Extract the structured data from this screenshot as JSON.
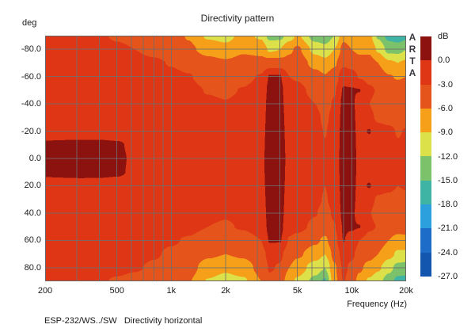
{
  "title": "Directivity pattern",
  "y_axis": {
    "unit_label": "deg",
    "ticks": [
      {
        "label": "-80.0",
        "deg": -80
      },
      {
        "label": "-60.0",
        "deg": -60
      },
      {
        "label": "-40.0",
        "deg": -40
      },
      {
        "label": "-20.0",
        "deg": -20
      },
      {
        "label": "0.0",
        "deg": 0
      },
      {
        "label": "20.0",
        "deg": 20
      },
      {
        "label": "40.0",
        "deg": 40
      },
      {
        "label": "60.0",
        "deg": 60
      },
      {
        "label": "80.0",
        "deg": 80
      }
    ]
  },
  "x_axis": {
    "label": "Frequency (Hz)",
    "ticks": [
      {
        "label": "200",
        "hz": 200
      },
      {
        "label": "500",
        "hz": 500
      },
      {
        "label": "1k",
        "hz": 1000
      },
      {
        "label": "2k",
        "hz": 2000
      },
      {
        "label": "5k",
        "hz": 5000
      },
      {
        "label": "10k",
        "hz": 10000
      },
      {
        "label": "20k",
        "hz": 20000
      }
    ]
  },
  "watermark": {
    "letters": [
      "A",
      "R",
      "T",
      "A"
    ]
  },
  "colorbar": {
    "unit_label": "dB",
    "tick_labels": [
      "0.0",
      "-3.0",
      "-6.0",
      "-9.0",
      "-12.0",
      "-15.0",
      "-18.0",
      "-21.0",
      "-24.0",
      "-27.0"
    ],
    "colors": [
      "#8C1210",
      "#DF3715",
      "#E5541B",
      "#F5A018",
      "#DCE14A",
      "#7CC26B",
      "#3FB3A4",
      "#2BA0DC",
      "#1C6CC8",
      "#1356B0"
    ]
  },
  "footer": {
    "text": "ESP-232/WS../SW   Directivity horizontal"
  },
  "chart_data": {
    "type": "heatmap",
    "title": "Directivity pattern",
    "xlabel": "Frequency (Hz)",
    "ylabel": "deg",
    "x_scale": "log",
    "xlim_hz": [
      200,
      20000
    ],
    "ylim_deg": [
      -90,
      90
    ],
    "legend_title": "dB",
    "levels_db": [
      0,
      -3,
      -6,
      -9,
      -12,
      -15,
      -18,
      -21,
      -24,
      -27
    ],
    "band_colors": [
      "#8C1210",
      "#DF3715",
      "#E5541B",
      "#F5A018",
      "#DCE14A",
      "#7CC26B",
      "#3FB3A4",
      "#2BA0DC",
      "#1C6CC8",
      "#1356B0"
    ],
    "freq_hz": [
      200,
      250,
      315,
      400,
      500,
      630,
      800,
      1000,
      1250,
      1600,
      2000,
      2500,
      3150,
      3500,
      4000,
      4500,
      5000,
      6300,
      7100,
      8000,
      9000,
      10000,
      11000,
      12500,
      14000,
      16000,
      18000,
      20000
    ],
    "angle_deg": [
      -90,
      -80,
      -70,
      -60,
      -50,
      -40,
      -30,
      -20,
      -10,
      0,
      10,
      20,
      30,
      40,
      50,
      60,
      70,
      80,
      90
    ],
    "values_db": [
      [
        -2.0,
        -2.0,
        -2.1,
        -2.8,
        -3.2,
        -3.6,
        -4.0,
        -4.8,
        -6.2,
        -9.5,
        -10.0,
        -8.0,
        -9.5,
        -13.0,
        -13.0,
        -10.5,
        -8.5,
        -13.5,
        -14.0,
        -12.0,
        -6.8,
        -8.0,
        -7.5,
        -8.0,
        -12.5,
        -16.0,
        -17.0,
        -16.0
      ],
      [
        -2.0,
        -2.0,
        -2.0,
        -2.4,
        -2.7,
        -3.0,
        -3.5,
        -4.2,
        -5.5,
        -7.0,
        -8.0,
        -6.5,
        -7.0,
        -9.5,
        -9.0,
        -6.5,
        -5.5,
        -10.0,
        -11.0,
        -9.0,
        -5.0,
        -6.0,
        -6.5,
        -6.5,
        -9.5,
        -13.0,
        -13.0,
        -12.0
      ],
      [
        -2.0,
        -2.0,
        -2.0,
        -2.1,
        -2.2,
        -2.4,
        -2.7,
        -3.1,
        -3.6,
        -5.0,
        -5.5,
        -4.8,
        -5.0,
        -4.5,
        -4.5,
        -5.0,
        -4.4,
        -7.0,
        -8.0,
        -6.5,
        -3.5,
        -4.2,
        -5.0,
        -5.0,
        -6.0,
        -8.5,
        -9.0,
        -8.5
      ],
      [
        -2.0,
        -2.0,
        -1.9,
        -1.9,
        -2.0,
        -2.1,
        -2.3,
        -2.6,
        -2.9,
        -3.8,
        -4.0,
        -3.6,
        -2.8,
        0.2,
        0.2,
        -3.0,
        -3.2,
        -4.8,
        -5.8,
        -4.5,
        -1.2,
        -1.6,
        -3.2,
        -3.8,
        -4.2,
        -5.8,
        -6.2,
        -6.0
      ],
      [
        -2.0,
        -2.0,
        -1.9,
        -1.8,
        -1.9,
        -2.0,
        -2.1,
        -2.3,
        -2.5,
        -3.1,
        -3.3,
        -2.9,
        -2.1,
        0.8,
        0.8,
        -2.3,
        -2.5,
        -3.6,
        -4.6,
        -3.3,
        0.3,
        0.2,
        0.1,
        -2.6,
        -3.2,
        -4.4,
        -4.8,
        -4.5
      ],
      [
        -2.0,
        -2.0,
        -1.9,
        -1.8,
        -1.8,
        -1.9,
        -2.0,
        -2.1,
        -2.3,
        -2.7,
        -2.9,
        -2.5,
        -1.7,
        1.0,
        1.0,
        -1.9,
        -2.1,
        -3.0,
        -4.0,
        -2.7,
        0.8,
        0.8,
        -1.6,
        -3.0,
        -3.8,
        -4.2,
        -4.5,
        -4.2
      ],
      [
        -2.0,
        -1.9,
        -1.8,
        -1.7,
        -1.7,
        -1.8,
        -1.8,
        -1.9,
        -2.1,
        -2.3,
        -2.5,
        -2.1,
        -1.4,
        1.2,
        1.2,
        -1.6,
        -1.8,
        -2.5,
        -3.4,
        -2.3,
        1.0,
        1.0,
        -1.3,
        -2.5,
        -3.4,
        -3.6,
        -3.8,
        -3.6
      ],
      [
        -1.8,
        -1.8,
        -1.7,
        -1.6,
        -1.6,
        -1.6,
        -1.7,
        -1.8,
        -1.9,
        -2.1,
        -2.2,
        -1.9,
        -1.1,
        1.3,
        1.3,
        -1.3,
        -1.6,
        -2.3,
        -3.1,
        -2.1,
        1.2,
        1.2,
        -1.1,
        0.2,
        -2.2,
        -2.6,
        -3.1,
        -2.9
      ],
      [
        0.5,
        0.7,
        0.8,
        0.7,
        0.4,
        -0.7,
        -1.3,
        -1.5,
        -1.6,
        -1.9,
        -2.0,
        -1.7,
        -0.9,
        1.4,
        1.4,
        -1.1,
        -1.5,
        -2.1,
        -2.9,
        -1.9,
        1.3,
        1.3,
        -0.9,
        -1.5,
        -2.0,
        -2.3,
        -2.9,
        -2.7
      ],
      [
        0.8,
        1.0,
        1.1,
        1.0,
        0.6,
        -0.5,
        -1.0,
        -1.2,
        -1.4,
        -1.6,
        -1.8,
        -1.5,
        -0.7,
        1.5,
        1.5,
        -0.9,
        -1.3,
        -2.0,
        -2.7,
        -1.7,
        1.4,
        1.4,
        -0.7,
        -1.2,
        -1.8,
        -2.1,
        -2.7,
        -2.5
      ],
      [
        0.6,
        0.8,
        0.9,
        0.8,
        0.5,
        -0.6,
        -1.2,
        -1.4,
        -1.5,
        -1.8,
        -1.9,
        -1.6,
        -0.8,
        1.4,
        1.4,
        -1.0,
        -1.4,
        -2.1,
        -2.8,
        -1.8,
        1.3,
        1.3,
        -0.8,
        -1.4,
        -1.9,
        -2.2,
        -2.8,
        -2.6
      ],
      [
        -1.4,
        -1.4,
        -1.3,
        -1.3,
        -1.4,
        -1.5,
        -1.6,
        -1.7,
        -1.8,
        -2.0,
        -2.1,
        -1.8,
        -1.0,
        1.3,
        1.3,
        -1.2,
        -1.5,
        -2.2,
        -3.0,
        -2.0,
        1.2,
        1.2,
        -1.0,
        0.2,
        -2.1,
        -2.5,
        -3.0,
        -2.8
      ],
      [
        -1.8,
        -1.8,
        -1.7,
        -1.6,
        -1.6,
        -1.7,
        -1.8,
        -1.9,
        -2.0,
        -2.2,
        -2.4,
        -2.0,
        -1.3,
        1.2,
        1.2,
        -1.5,
        -1.7,
        -2.4,
        -3.2,
        -2.2,
        1.0,
        1.0,
        -1.2,
        -2.4,
        -3.3,
        -3.5,
        -3.7,
        -3.5
      ],
      [
        -2.0,
        -2.0,
        -1.9,
        -1.7,
        -1.7,
        -1.8,
        -1.9,
        -2.0,
        -2.2,
        -2.6,
        -2.8,
        -2.4,
        -1.6,
        1.0,
        1.0,
        -1.8,
        -2.0,
        -2.9,
        -3.9,
        -2.6,
        0.8,
        0.8,
        -1.5,
        -2.9,
        -3.7,
        -4.1,
        -4.4,
        -4.1
      ],
      [
        -2.0,
        -2.0,
        -1.9,
        -1.8,
        -1.8,
        -1.9,
        -2.0,
        -2.2,
        -2.4,
        -3.0,
        -3.2,
        -2.8,
        -2.0,
        0.8,
        0.8,
        -2.2,
        -2.4,
        -3.5,
        -4.5,
        -3.2,
        0.3,
        0.3,
        0.1,
        -2.6,
        -3.1,
        -4.3,
        -4.7,
        -4.4
      ],
      [
        -2.0,
        -2.0,
        -2.0,
        -1.9,
        -2.0,
        -2.1,
        -2.4,
        -2.8,
        -3.2,
        -4.2,
        -4.5,
        -4.0,
        -3.0,
        0.2,
        0.2,
        -3.2,
        -3.8,
        -5.5,
        -6.5,
        -4.0,
        0.1,
        -1.0,
        -3.0,
        -4.0,
        -4.5,
        -6.0,
        -7.0,
        -7.0
      ],
      [
        -2.0,
        -2.0,
        -2.0,
        -2.0,
        -2.1,
        -2.3,
        -2.8,
        -3.3,
        -3.8,
        -5.5,
        -6.0,
        -5.5,
        -4.0,
        -2.2,
        -2.5,
        -4.5,
        -5.5,
        -7.5,
        -9.0,
        -5.0,
        -1.8,
        -2.5,
        -4.0,
        -5.0,
        -6.0,
        -8.0,
        -9.5,
        -9.5
      ],
      [
        -2.1,
        -2.1,
        -2.1,
        -2.3,
        -2.5,
        -2.8,
        -3.3,
        -4.0,
        -4.8,
        -7.5,
        -8.5,
        -7.5,
        -5.0,
        -2.8,
        -3.2,
        -6.0,
        -7.5,
        -10.5,
        -12.0,
        -6.5,
        -2.5,
        -3.5,
        -5.5,
        -7.0,
        -8.5,
        -11.0,
        -13.0,
        -13.5
      ],
      [
        -2.3,
        -2.3,
        -2.4,
        -2.8,
        -3.2,
        -3.6,
        -4.0,
        -4.8,
        -5.8,
        -9.2,
        -10.0,
        -9.5,
        -6.0,
        -3.5,
        -4.0,
        -8.0,
        -9.5,
        -13.0,
        -15.5,
        -7.0,
        -2.8,
        -4.5,
        -7.0,
        -9.5,
        -11.0,
        -13.5,
        -16.0,
        -16.0
      ]
    ],
    "grid": {
      "v_freqs_hz": [
        300,
        400,
        500,
        600,
        700,
        800,
        900,
        1000,
        2000,
        3000,
        4000,
        5000,
        6000,
        7000,
        8000,
        9000,
        10000,
        20000
      ],
      "h_angles_deg": [
        -80,
        -60,
        -40,
        -20,
        0,
        20,
        40,
        60,
        80
      ],
      "line_color": "#6E6E6E",
      "frame_color": "#666666"
    }
  }
}
